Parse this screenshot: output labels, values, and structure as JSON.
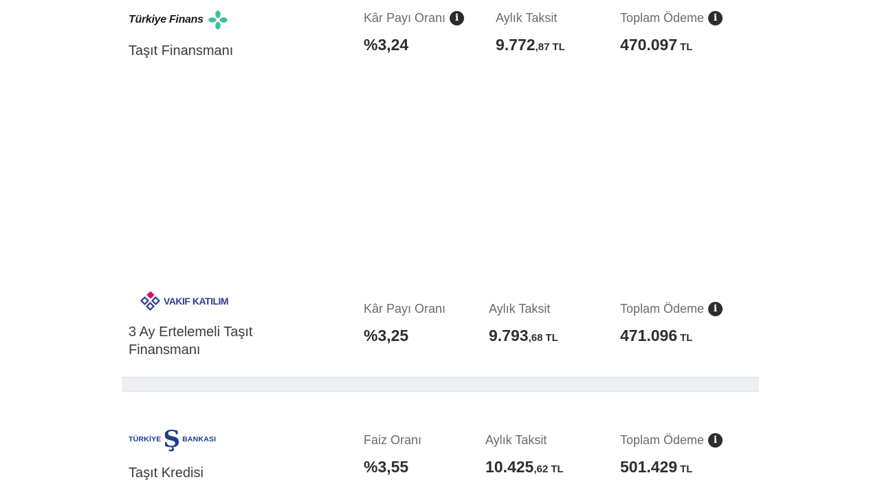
{
  "offers": [
    {
      "bank_name": "Türkiye Finans",
      "product": "Taşıt Finansmanı",
      "rate_label": "Kâr Payı Oranı",
      "rate_value": "%3,24",
      "installment_label": "Aylık Taksit",
      "installment_int": "9.772",
      "installment_dec": ",87",
      "installment_unit": "TL",
      "total_label": "Toplam Ödeme",
      "total_value": "470.097",
      "total_unit": "TL"
    },
    {
      "bank_name": "VAKIF KATILIM",
      "product": "3 Ay Ertelemeli Taşıt Finansmanı",
      "rate_label": "Kâr Payı Oranı",
      "rate_value": "%3,25",
      "installment_label": "Aylık Taksit",
      "installment_int": "9.793",
      "installment_dec": ",68",
      "installment_unit": "TL",
      "total_label": "Toplam Ödeme",
      "total_value": "471.096",
      "total_unit": "TL"
    },
    {
      "bank_name_left": "TÜRKİYE",
      "bank_name_right": "BANKASI",
      "bank_mark": "Ş",
      "product": "Taşıt Kredisi",
      "rate_label": "Faiz Oranı",
      "rate_value": "%3,55",
      "installment_label": "Aylık Taksit",
      "installment_int": "10.425",
      "installment_dec": ",62",
      "installment_unit": "TL",
      "total_label": "Toplam Ödeme",
      "total_value": "501.429",
      "total_unit": "TL"
    }
  ],
  "icons": {
    "info": "info-circle-icon",
    "info_glyph": "i"
  },
  "colors": {
    "turkiye_finans_green": "#3dbfa0",
    "vakif_pink": "#e6007e",
    "vakif_blue": "#2c3e8c",
    "isbank_blue": "#1a3d8f"
  }
}
